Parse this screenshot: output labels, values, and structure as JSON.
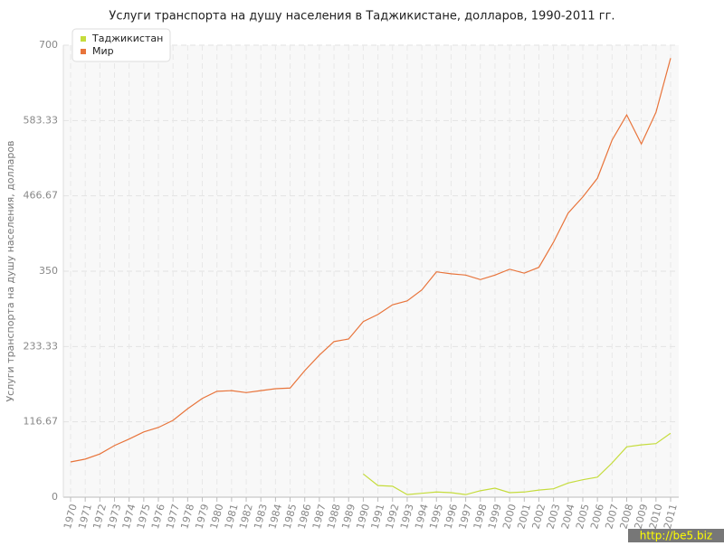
{
  "chart_data": {
    "type": "line",
    "title": "Услуги транспорта на душу населения в Таджикистане, долларов, 1990-2011 гг.",
    "y_label": "Услуги транспорта на душу населения, долларов",
    "categories": [
      "1970",
      "1971",
      "1972",
      "1973",
      "1974",
      "1975",
      "1976",
      "1977",
      "1978",
      "1979",
      "1980",
      "1981",
      "1982",
      "1983",
      "1984",
      "1985",
      "1986",
      "1987",
      "1988",
      "1989",
      "1990",
      "1991",
      "1992",
      "1993",
      "1994",
      "1995",
      "1996",
      "1997",
      "1998",
      "1999",
      "2000",
      "2001",
      "2002",
      "2003",
      "2004",
      "2005",
      "2006",
      "2007",
      "2008",
      "2009",
      "2010",
      "2011"
    ],
    "series": [
      {
        "name": "Таджикистан",
        "color": "#c5dc3c",
        "values": [
          null,
          null,
          null,
          null,
          null,
          null,
          null,
          null,
          null,
          null,
          null,
          null,
          null,
          null,
          null,
          null,
          null,
          null,
          null,
          null,
          36,
          18,
          17,
          4,
          6,
          8,
          7,
          4,
          10,
          14,
          7,
          8,
          11,
          13,
          22,
          27,
          31,
          53,
          78,
          81,
          83,
          99
        ]
      },
      {
        "name": "Мир",
        "color": "#e8743b",
        "values": [
          54.6,
          59,
          67,
          80,
          90,
          101,
          108,
          119,
          137,
          153,
          164,
          165,
          162,
          165,
          168,
          169,
          196,
          220,
          241,
          245,
          272,
          283,
          298,
          304,
          321,
          349,
          346,
          344,
          337,
          344,
          353,
          347,
          356,
          395,
          440,
          465,
          494,
          553,
          592,
          547,
          596,
          680
        ]
      }
    ],
    "ylim": [
      0,
      700
    ],
    "yticks": [
      0,
      116.67,
      233.33,
      350,
      466.67,
      583.33,
      700
    ],
    "grid": true,
    "legend": "top-left",
    "watermark": "http://be5.biz"
  }
}
